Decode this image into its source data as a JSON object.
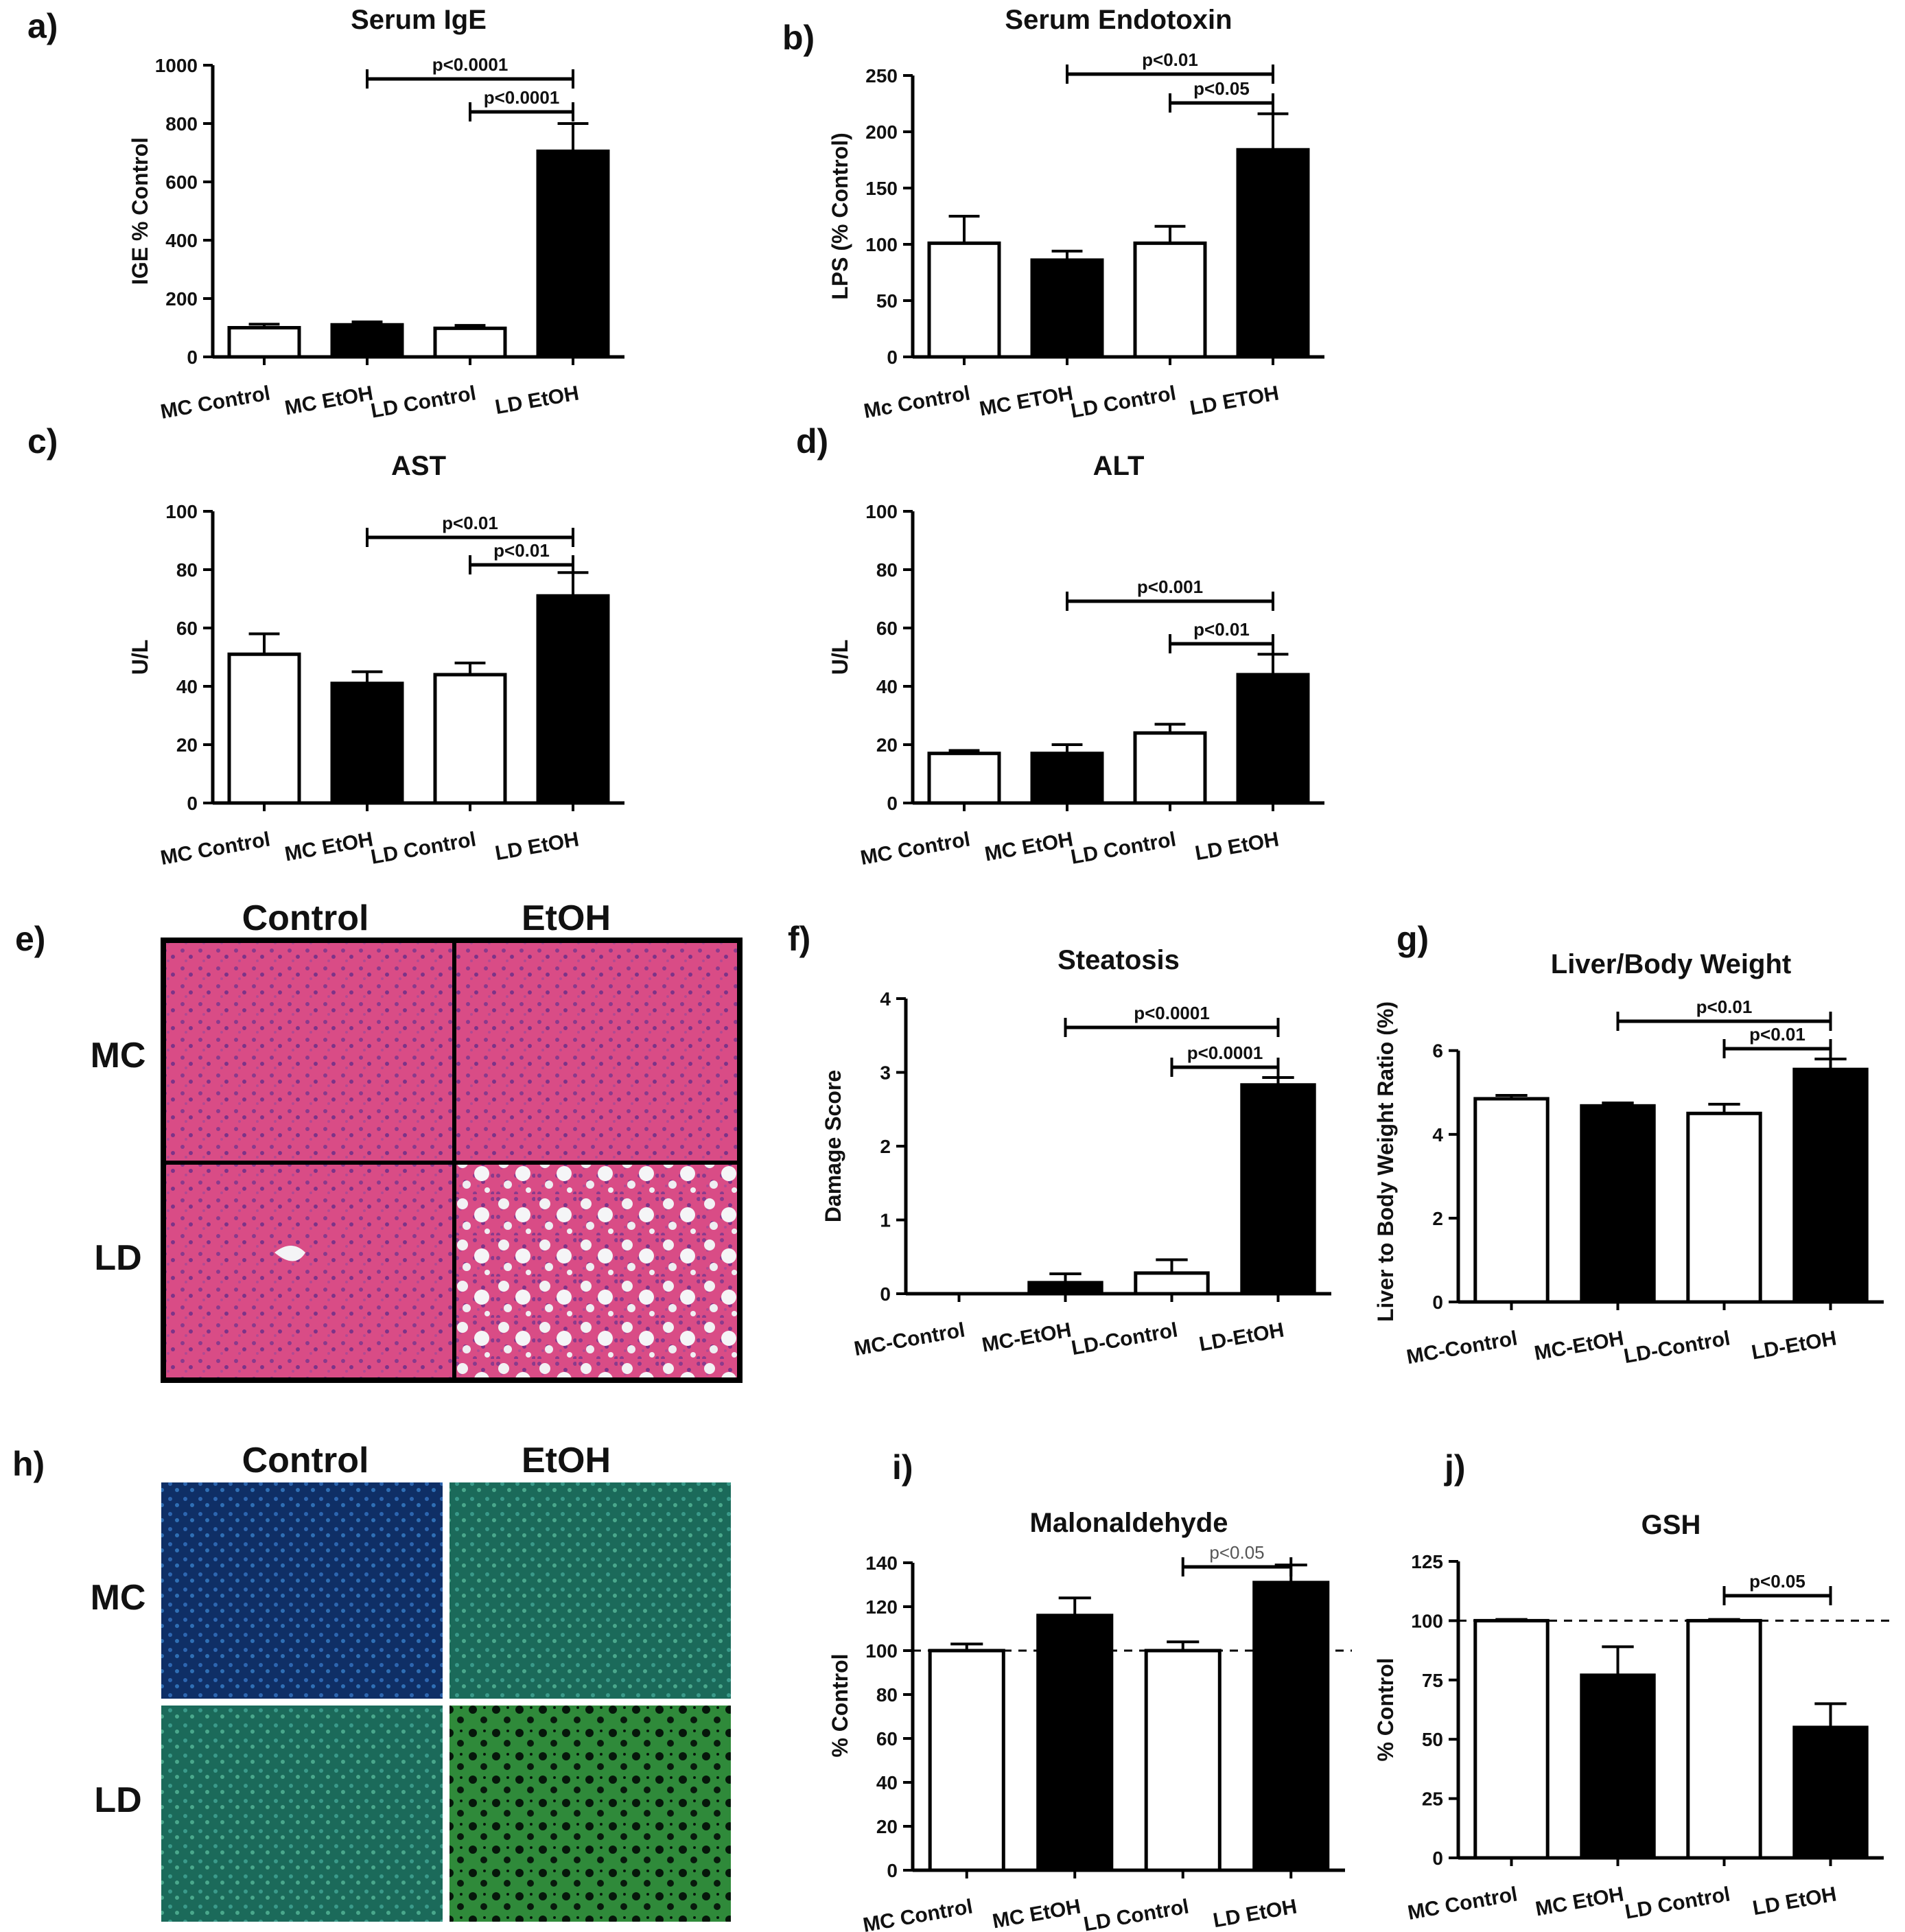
{
  "panel_letters": {
    "a": "a)",
    "b": "b)",
    "c": "c)",
    "d": "d)",
    "e": "e)",
    "f": "f)",
    "g": "g)",
    "h": "h)",
    "i": "i)",
    "j": "j)"
  },
  "histology_e": {
    "col_control": "Control",
    "col_etoh": "EtOH",
    "row_mc": "MC",
    "row_ld": "LD"
  },
  "fluorescence_h": {
    "col_control": "Control",
    "col_etoh": "EtOH",
    "row_mc": "MC",
    "row_ld": "LD"
  },
  "colors": {
    "control_bar": "#ffffff",
    "etoh_bar": "#000000",
    "he_stain": "#d94c86",
    "fluor_green": "#3fa45a",
    "fluor_blue": "#1c3f86"
  },
  "chart_data": [
    {
      "id": "a",
      "type": "bar",
      "title": "Serum IgE",
      "ylabel": "IGE % Control",
      "categories": [
        "MC Control",
        "MC EtOH",
        "LD Control",
        "LD EtOH"
      ],
      "values": [
        100,
        110,
        98,
        705
      ],
      "errors": [
        12,
        10,
        10,
        95
      ],
      "fills": [
        "white",
        "black",
        "white",
        "black"
      ],
      "ylim": [
        0,
        1000
      ],
      "yticks": [
        0,
        200,
        400,
        600,
        800,
        1000
      ],
      "significance": [
        {
          "from": 1,
          "to": 3,
          "label": "p<0.0001"
        },
        {
          "from": 2,
          "to": 3,
          "label": "p<0.0001"
        }
      ]
    },
    {
      "id": "b",
      "type": "bar",
      "title": "Serum Endotoxin",
      "ylabel": "LPS (% Control)",
      "categories": [
        "Mc Control",
        "MC ETOH",
        "LD Control",
        "LD ETOH"
      ],
      "values": [
        101,
        86,
        101,
        184
      ],
      "errors": [
        24,
        8,
        15,
        32
      ],
      "fills": [
        "white",
        "black",
        "white",
        "black"
      ],
      "ylim": [
        0,
        250
      ],
      "yticks": [
        0,
        50,
        100,
        150,
        200,
        250
      ],
      "significance": [
        {
          "from": 1,
          "to": 3,
          "label": "p<0.01"
        },
        {
          "from": 2,
          "to": 3,
          "label": "p<0.05"
        }
      ]
    },
    {
      "id": "c",
      "type": "bar",
      "title": "AST",
      "ylabel": "U/L",
      "categories": [
        "MC Control",
        "MC EtOH",
        "LD Control",
        "LD EtOH"
      ],
      "values": [
        51,
        41,
        44,
        71
      ],
      "errors": [
        7,
        4,
        4,
        8
      ],
      "fills": [
        "white",
        "black",
        "white",
        "black"
      ],
      "ylim": [
        0,
        100
      ],
      "yticks": [
        0,
        20,
        40,
        60,
        80,
        100
      ],
      "significance": [
        {
          "from": 1,
          "to": 3,
          "label": "p<0.01"
        },
        {
          "from": 2,
          "to": 3,
          "label": "p<0.01"
        }
      ]
    },
    {
      "id": "d",
      "type": "bar",
      "title": "ALT",
      "ylabel": "U/L",
      "categories": [
        "MC Control",
        "MC EtOH",
        "LD Control",
        "LD EtOH"
      ],
      "values": [
        17,
        17,
        24,
        44
      ],
      "errors": [
        1,
        3,
        3,
        7
      ],
      "fills": [
        "white",
        "black",
        "white",
        "black"
      ],
      "ylim": [
        0,
        100
      ],
      "yticks": [
        0,
        20,
        40,
        60,
        80,
        100
      ],
      "significance": [
        {
          "from": 1,
          "to": 3,
          "label": "p<0.001"
        },
        {
          "from": 2,
          "to": 3,
          "label": "p<0.01"
        }
      ]
    },
    {
      "id": "f",
      "type": "bar",
      "title": "Steatosis",
      "ylabel": "Damage Score",
      "categories": [
        "MC-Control",
        "MC-EtOH",
        "LD-Control",
        "LD-EtOH"
      ],
      "values": [
        0,
        0.15,
        0.28,
        2.83
      ],
      "errors": [
        0,
        0.12,
        0.18,
        0.1
      ],
      "fills": [
        "white",
        "black",
        "white",
        "black"
      ],
      "ylim": [
        0,
        4
      ],
      "yticks": [
        0,
        1,
        2,
        3,
        4
      ],
      "significance": [
        {
          "from": 1,
          "to": 3,
          "label": "p<0.0001"
        },
        {
          "from": 2,
          "to": 3,
          "label": "p<0.0001"
        }
      ]
    },
    {
      "id": "g",
      "type": "bar",
      "title": "Liver/Body Weight",
      "ylabel": "Liver to Body Weight Ratio (%)",
      "categories": [
        "MC-Control",
        "MC-EtOH",
        "LD-Control",
        "LD-EtOH"
      ],
      "values": [
        4.85,
        4.68,
        4.5,
        5.55
      ],
      "errors": [
        0.08,
        0.07,
        0.22,
        0.25
      ],
      "fills": [
        "white",
        "black",
        "white",
        "black"
      ],
      "ylim": [
        0,
        6.7
      ],
      "yticks": [
        0,
        2,
        4,
        6
      ],
      "significance": [
        {
          "from": 1,
          "to": 3,
          "label": "p<0.01"
        },
        {
          "from": 2,
          "to": 3,
          "label": "p<0.01"
        }
      ]
    },
    {
      "id": "i",
      "type": "bar",
      "title": "Malonaldehyde",
      "ylabel": "% Control",
      "categories": [
        "MC Control",
        "MC EtOH",
        "LD Control",
        "LD EtOH"
      ],
      "values": [
        100,
        116,
        100,
        131
      ],
      "errors": [
        3,
        8,
        4,
        8
      ],
      "fills": [
        "white",
        "black",
        "white",
        "black"
      ],
      "ylim": [
        0,
        150
      ],
      "yticks": [
        0,
        20,
        40,
        60,
        80,
        100,
        120,
        140
      ],
      "reference_line": 100,
      "significance": [
        {
          "from": 2,
          "to": 3,
          "label": "p<0.05",
          "light": true
        }
      ]
    },
    {
      "id": "j",
      "type": "bar",
      "title": "GSH",
      "ylabel": "% Control",
      "categories": [
        "MC Control",
        "MC EtOH",
        "LD Control",
        "LD EtOH"
      ],
      "values": [
        100,
        77,
        100,
        55
      ],
      "errors": [
        0.5,
        12,
        0.5,
        10
      ],
      "fills": [
        "white",
        "black",
        "white",
        "black"
      ],
      "ylim": [
        0,
        125
      ],
      "yticks": [
        0,
        25,
        50,
        75,
        100,
        125
      ],
      "reference_line": 100,
      "significance": [
        {
          "from": 2,
          "to": 3,
          "label": "p<0.05"
        }
      ]
    }
  ]
}
